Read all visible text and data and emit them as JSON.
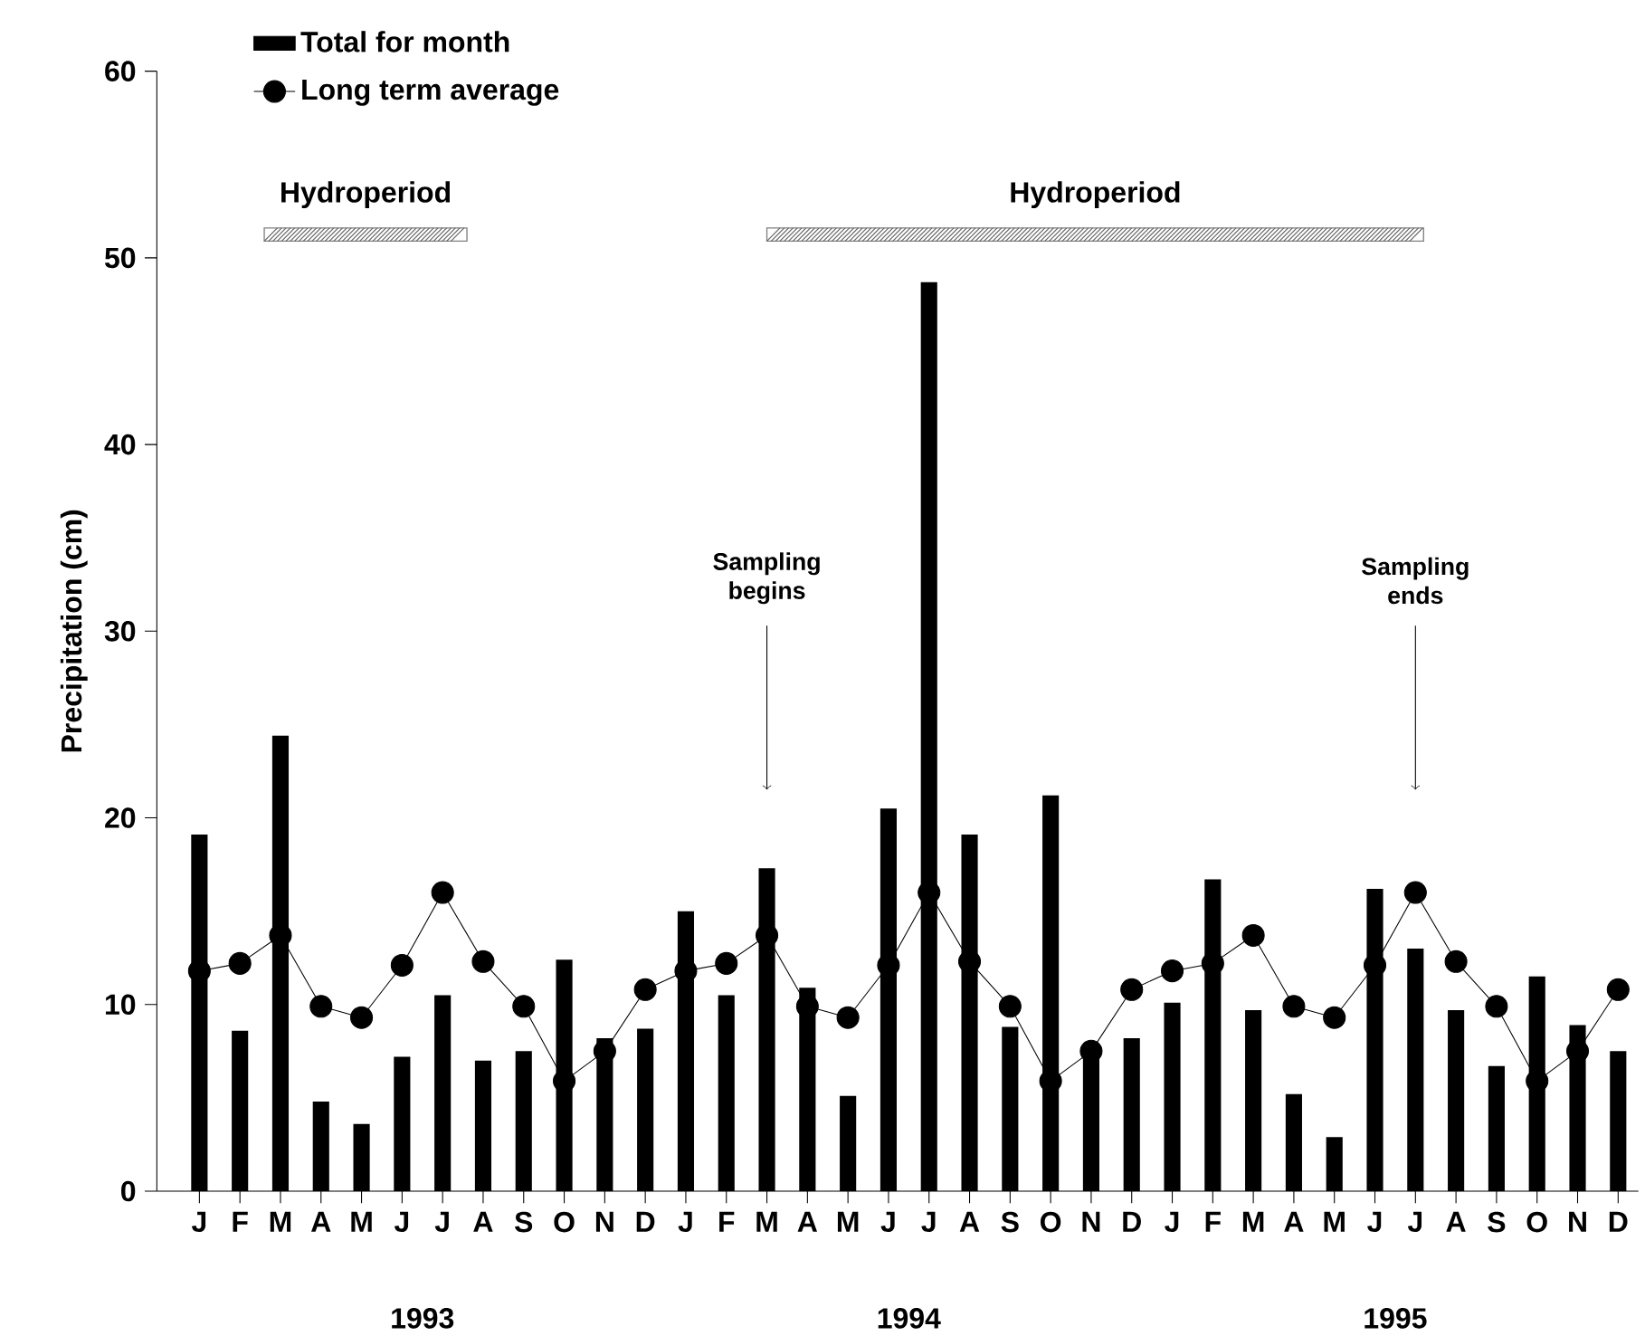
{
  "chart_data": {
    "type": "bar",
    "ylabel": "Precipitation (cm)",
    "categories": [
      "J",
      "F",
      "M",
      "A",
      "M",
      "J",
      "J",
      "A",
      "S",
      "O",
      "N",
      "D",
      "J",
      "F",
      "M",
      "A",
      "M",
      "J",
      "J",
      "A",
      "S",
      "O",
      "N",
      "D",
      "J",
      "F",
      "M",
      "A",
      "M",
      "J",
      "J",
      "A",
      "S",
      "O",
      "N",
      "D"
    ],
    "series": [
      {
        "name": "Total for month",
        "color": "#000000",
        "values": [
          19.1,
          8.6,
          24.4,
          4.8,
          3.6,
          7.2,
          10.5,
          7.0,
          7.5,
          12.4,
          8.2,
          8.7,
          15.0,
          10.5,
          17.3,
          10.9,
          5.1,
          20.5,
          48.7,
          19.1,
          8.8,
          21.2,
          7.3,
          8.2,
          10.1,
          16.7,
          9.7,
          5.2,
          2.9,
          16.2,
          13.0,
          9.7,
          6.7,
          11.5,
          8.9,
          7.5
        ]
      },
      {
        "name": "Long term average",
        "type": "line",
        "color": "#000000",
        "marker": "circle",
        "line_style": "solid",
        "values": [
          11.8,
          12.2,
          13.7,
          9.9,
          9.3,
          12.1,
          16.0,
          12.3,
          9.9,
          5.9,
          7.5,
          10.8,
          11.8,
          12.2,
          13.7,
          9.9,
          9.3,
          12.1,
          16.0,
          12.3,
          9.9,
          5.9,
          7.5,
          10.8,
          11.8,
          12.2,
          13.7,
          9.9,
          9.3,
          12.1,
          16.0,
          12.3,
          9.9,
          5.9,
          7.5,
          10.8
        ]
      }
    ],
    "ylim": [
      0,
      60
    ],
    "yticks": [
      0,
      10,
      20,
      30,
      40,
      50,
      60
    ],
    "annotations": [
      "Sampling begins",
      "Sampling ends",
      "1993",
      "1994",
      "1995",
      "Hydroperiod",
      "Hydroperiod"
    ],
    "legend": "top left",
    "grid": false
  }
}
